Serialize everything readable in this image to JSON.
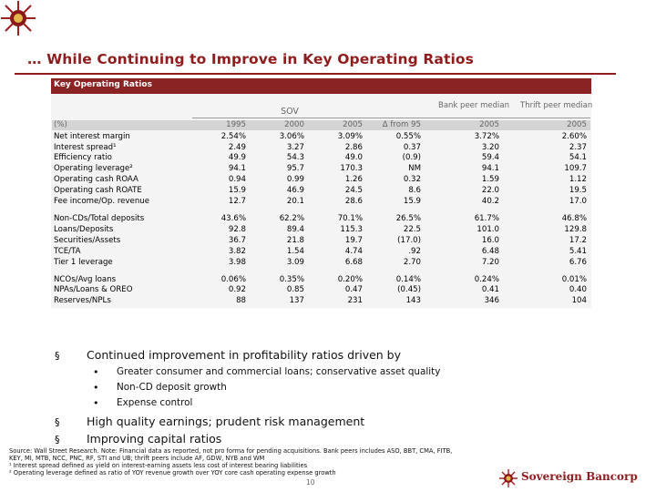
{
  "slide": {
    "title": "… While Continuing to Improve in Key Operating Ratios",
    "page_number": "10",
    "brand_name": "Sovereign Bancorp",
    "accent_color": "#8f1d1d"
  },
  "table": {
    "header": "Key Operating Ratios",
    "group_sov": "SOV",
    "group_bank": "Bank peer median",
    "group_thrift": "Thrift peer median",
    "columns": [
      "(%)",
      "1995",
      "2000",
      "2005",
      "Δ from 95",
      "2005",
      "2005"
    ],
    "rows": [
      {
        "label": "Net interest margin",
        "values": [
          "2.54%",
          "3.06%",
          "3.09%",
          "0.55%",
          "3.72%",
          "2.60%"
        ]
      },
      {
        "label": "Interest spread¹",
        "values": [
          "2.49",
          "3.27",
          "2.86",
          "0.37",
          "3.20",
          "2.37"
        ]
      },
      {
        "label": "Efficiency ratio",
        "values": [
          "49.9",
          "54.3",
          "49.0",
          "(0.9)",
          "59.4",
          "54.1"
        ]
      },
      {
        "label": "Operating leverage²",
        "values": [
          "94.1",
          "95.7",
          "170.3",
          "NM",
          "94.1",
          "109.7"
        ]
      },
      {
        "label": "Operating cash ROAA",
        "values": [
          "0.94",
          "0.99",
          "1.26",
          "0.32",
          "1.59",
          "1.12"
        ]
      },
      {
        "label": "Operating cash ROATE",
        "values": [
          "15.9",
          "46.9",
          "24.5",
          "8.6",
          "22.0",
          "19.5"
        ]
      },
      {
        "label": "Fee income/Op. revenue",
        "values": [
          "12.7",
          "20.1",
          "28.6",
          "15.9",
          "40.2",
          "17.0"
        ]
      },
      {
        "label": "Non-CDs/Total deposits",
        "values": [
          "43.6%",
          "62.2%",
          "70.1%",
          "26.5%",
          "61.7%",
          "46.8%"
        ]
      },
      {
        "label": "Loans/Deposits",
        "values": [
          "92.8",
          "89.4",
          "115.3",
          "22.5",
          "101.0",
          "129.8"
        ]
      },
      {
        "label": "Securities/Assets",
        "values": [
          "36.7",
          "21.8",
          "19.7",
          "(17.0)",
          "16.0",
          "17.2"
        ]
      },
      {
        "label": "TCE/TA",
        "values": [
          "3.82",
          "1.54",
          "4.74",
          ".92",
          "6.48",
          "5.41"
        ]
      },
      {
        "label": "Tier 1 leverage",
        "values": [
          "3.98",
          "3.09",
          "6.68",
          "2.70",
          "7.20",
          "6.76"
        ]
      },
      {
        "label": "NCOs/Avg loans",
        "values": [
          "0.06%",
          "0.35%",
          "0.20%",
          "0.14%",
          "0.24%",
          "0.01%"
        ]
      },
      {
        "label": "NPAs/Loans & OREO",
        "values": [
          "0.92",
          "0.85",
          "0.47",
          "(0.45)",
          "0.41",
          "0.40"
        ]
      },
      {
        "label": "Reserves/NPLs",
        "values": [
          "88",
          "137",
          "231",
          "143",
          "346",
          "104"
        ]
      }
    ]
  },
  "bullets": [
    {
      "marker": "§",
      "text": "Continued improvement in profitability ratios driven by"
    },
    {
      "marker": "§",
      "text": "High quality earnings; prudent risk management"
    },
    {
      "marker": "§",
      "text": "Improving capital ratios"
    }
  ],
  "subbullets": [
    {
      "marker": "•",
      "text": "Greater consumer and commercial loans; conservative asset quality"
    },
    {
      "marker": "•",
      "text": "Non-CD deposit growth"
    },
    {
      "marker": "•",
      "text": "Expense control"
    }
  ],
  "footnotes": [
    "Source: Wall Street Research.  Note: Financial data as reported, not pro forma for pending acquisitions. Bank peers includes ASO, BBT, CMA, FITB,",
    "KEY, MI, MTB, NCC, PNC, RF, STI and UB; thrift peers include AF, GDW, NYB and WM",
    "¹ Interest spread defined as yield on interest-earning assets less cost of interest bearing liabilities",
    "² Operating leverage defined as ratio of YOY revenue growth over YOY core cash operating expense growth"
  ]
}
